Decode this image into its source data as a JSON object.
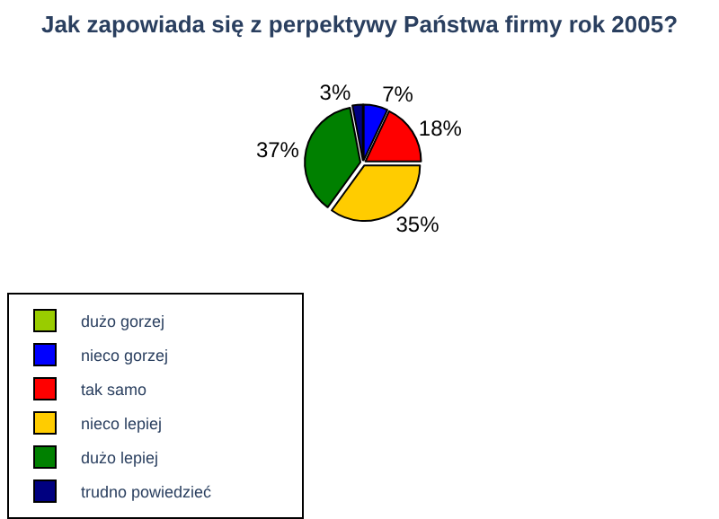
{
  "chart_data": {
    "type": "pie",
    "title": "Jak zapowiada się z perpektywy Państwa firmy rok 2005?",
    "categories": [
      "dużo gorzej",
      "nieco gorzej",
      "tak samo",
      "nieco lepiej",
      "dużo lepiej",
      "trudno powiedzieć"
    ],
    "values": [
      0,
      7,
      18,
      35,
      37,
      3
    ],
    "value_labels": [
      null,
      "7%",
      "18%",
      "35%",
      "37%",
      "3%"
    ],
    "colors": [
      "#99cc00",
      "#0000ff",
      "#ff0000",
      "#ffcc00",
      "#008000",
      "#000080"
    ],
    "legend": "bottom"
  }
}
